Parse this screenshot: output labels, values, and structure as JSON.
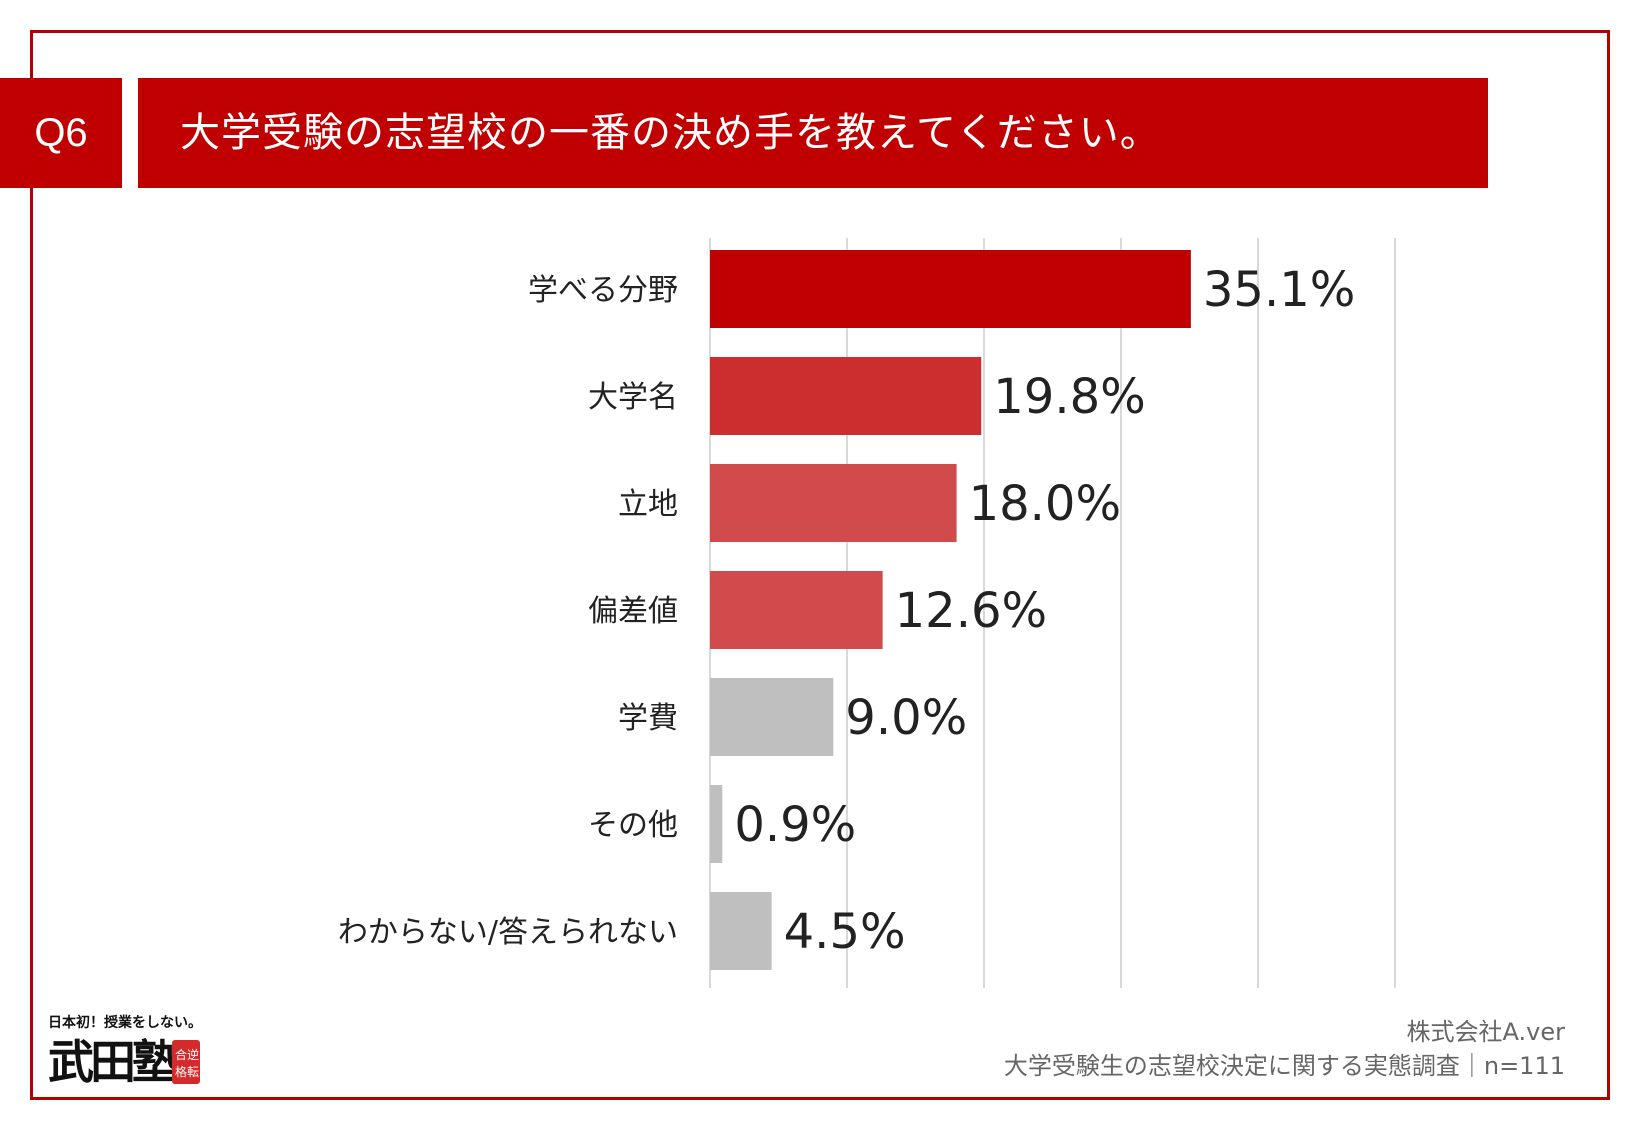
{
  "header": {
    "question_no": "Q6",
    "title": "大学受験の志望校の一番の決め手を教えてください。"
  },
  "chart_data": {
    "type": "bar",
    "orientation": "horizontal",
    "title": "大学受験の志望校の一番の決め手を教えてください。",
    "categories": [
      "学べる分野",
      "大学名",
      "立地",
      "偏差値",
      "学費",
      "その他",
      "わからない/答えられない"
    ],
    "values": [
      35.1,
      19.8,
      18.0,
      12.6,
      9.0,
      0.9,
      4.5
    ],
    "value_labels": [
      "35.1%",
      "19.8%",
      "18.0%",
      "12.6%",
      "9.0%",
      "0.9%",
      "4.5%"
    ],
    "colors": [
      "#c00000",
      "#cc2e30",
      "#d14b4c",
      "#d14b4c",
      "#bfbfbf",
      "#bfbfbf",
      "#bfbfbf"
    ],
    "xlim": [
      0,
      50
    ],
    "gridlines": [
      10,
      20,
      30,
      40,
      50
    ],
    "grid": true,
    "xlabel": "",
    "ylabel": ""
  },
  "logo": {
    "tagline": "日本初！授業をしない。",
    "name": "武田塾",
    "seal": "合格逆転"
  },
  "footer": {
    "company": "株式会社A.ver",
    "survey": "大学受験生の志望校決定に関する実態調査｜n=111"
  },
  "colors": {
    "accent": "#c00000",
    "frame": "#b30000",
    "gray_bar": "#bfbfbf"
  }
}
